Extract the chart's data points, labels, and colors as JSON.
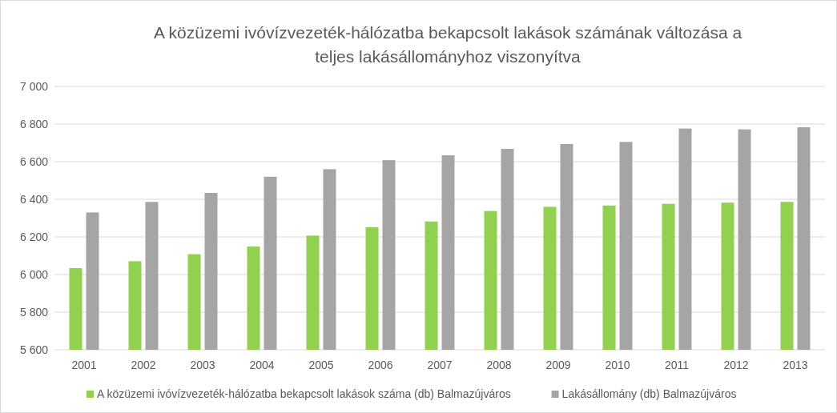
{
  "chart_data": {
    "type": "bar",
    "title": "A közüzemi ivóvízvezeték-hálózatba bekapcsolt lakások számának változása a teljes lakásállományhoz viszonyítva",
    "categories": [
      "2001",
      "2002",
      "2003",
      "2004",
      "2005",
      "2006",
      "2007",
      "2008",
      "2009",
      "2010",
      "2011",
      "2012",
      "2013"
    ],
    "series": [
      {
        "name": "A közüzemi ivóvízvezeték-hálózatba bekapcsolt lakások száma (db) Balmazújváros",
        "color": "#92d050",
        "values": [
          6034,
          6071,
          6108,
          6149,
          6207,
          6252,
          6282,
          6338,
          6360,
          6367,
          6376,
          6382,
          6386
        ]
      },
      {
        "name": "Lakásállomány (db) Balmazújváros",
        "color": "#a5a5a5",
        "values": [
          6330,
          6386,
          6434,
          6520,
          6560,
          6608,
          6634,
          6668,
          6694,
          6705,
          6776,
          6772,
          6783
        ]
      }
    ],
    "ylim": [
      5600,
      7000
    ],
    "yticks": [
      {
        "value": 5600,
        "label": "5 600"
      },
      {
        "value": 5800,
        "label": "5 800"
      },
      {
        "value": 6000,
        "label": "6 000"
      },
      {
        "value": 6200,
        "label": "6 200"
      },
      {
        "value": 6400,
        "label": "6 400"
      },
      {
        "value": 6600,
        "label": "6 600"
      },
      {
        "value": 6800,
        "label": "6 800"
      },
      {
        "value": 7000,
        "label": "7 000"
      }
    ],
    "grid": "y",
    "legend": "bottom"
  }
}
